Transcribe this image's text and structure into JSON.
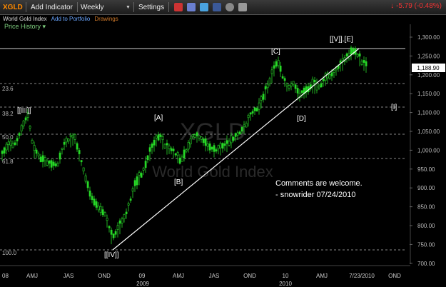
{
  "toolbar": {
    "symbol": "XGLD",
    "add_indicator": "Add Indicator",
    "period": "Weekly",
    "settings": "Settings",
    "change": "↓ -5.79 (-0.48%)"
  },
  "subbar": {
    "title": "World Gold Index",
    "add_portfolio": "Add to Portfolio",
    "drawings": "Drawings"
  },
  "price_history_label": "Price History ▾",
  "watermark": {
    "symbol": "XGLD",
    "name": "World Gold Index"
  },
  "chart_data": {
    "type": "candlestick",
    "y_ticks": [
      "1,300.00",
      "1,250.00",
      "1,200.00",
      "1,150.00",
      "1,100.00",
      "1,050.00",
      "1,000.00",
      "950.00",
      "900.00",
      "850.00",
      "800.00",
      "750.00",
      "700.00"
    ],
    "ylim": [
      690,
      1305
    ],
    "last_price_label": "1,188.90",
    "x_ticks": [
      "08",
      "AMJ",
      "JAS",
      "OND",
      "09",
      "AMJ",
      "JAS",
      "OND",
      "10",
      "AMJ",
      "7/23/2010",
      "OND"
    ],
    "x_year_labels": [
      "2009",
      "2010"
    ],
    "fib_labels": [
      "23.6",
      "38.2",
      "50.0",
      "61.8",
      "100.0"
    ],
    "wave_labels": [
      "[[III]]",
      "[A]",
      "[B]",
      "[[IV]]",
      "[C]",
      "[D]",
      "[[V]].[E]",
      "[I]"
    ],
    "comment_lines": [
      "Comments are welcome.",
      "- snowrider  07/24/2010"
    ]
  }
}
